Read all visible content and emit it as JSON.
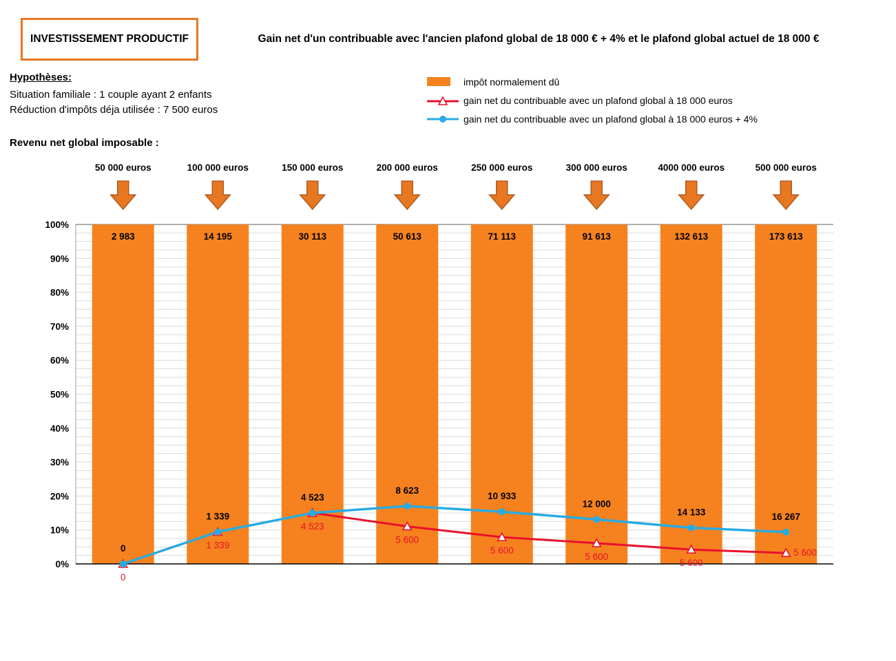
{
  "header": {
    "box_label": "INVESTISSEMENT PRODUCTIF",
    "title": "Gain net d'un contribuable avec l'ancien plafond global de 18 000 € + 4% et le plafond global actuel de 18 000 €"
  },
  "hypotheses": {
    "heading": "Hypothèses:",
    "line1": "Situation familiale  : 1 couple ayant 2 enfants",
    "line2": "Réduction d'impôts  déja utilisée :  7 500 euros"
  },
  "legend": [
    {
      "label": "impôt normalement dû",
      "color": "#F5821F",
      "marker": "bar-swatch"
    },
    {
      "label": "gain net du contribuable avec un plafond global à 18 000 euros",
      "color": "#E8112D",
      "marker": "line-triangle"
    },
    {
      "label": "gain net du contribuable avec un plafond global à 18 000 euros + 4%",
      "color": "#29ABE2",
      "marker": "line-circle"
    }
  ],
  "revenu_label": "Revenu net global imposable  :",
  "chart_data": {
    "type": "bar",
    "categories": [
      "50 000 euros",
      "100 000 euros",
      "150 000 euros",
      "200 000 euros",
      "250 000 euros",
      "300 000 euros",
      "4000 000 euros",
      "500 000 euros"
    ],
    "bar_series": {
      "name": "impôt normalement dû",
      "color": "#F5821F",
      "values": [
        2983,
        14195,
        30113,
        50613,
        71113,
        91613,
        132613,
        173613
      ],
      "value_labels": [
        "2 983",
        "14 195",
        "30 113",
        "50 613",
        "71 113",
        "91 613",
        "132 613",
        "173 613"
      ],
      "plotted_as_percent": 100
    },
    "line_series": [
      {
        "name": "gain net du contribuable avec un plafond global à 18 000 euros",
        "color": "#E8112D",
        "marker": "triangle",
        "values": [
          0,
          1339,
          4523,
          5600,
          5600,
          5600,
          5600,
          5600
        ],
        "value_labels": [
          "0",
          "1 339",
          "4 523",
          "5 600",
          "5 600",
          "5 600",
          "5 600",
          "5 600"
        ]
      },
      {
        "name": "gain net du contribuable avec un plafond global à 18 000 euros + 4%",
        "color": "#29ABE2",
        "marker": "circle",
        "values": [
          0,
          1339,
          4523,
          8623,
          10933,
          12000,
          14133,
          16267
        ],
        "value_labels": [
          "0",
          "1 339",
          "4 523",
          "8 623",
          "10 933",
          "12 000",
          "14 133",
          "16 267"
        ]
      }
    ],
    "y_axis": {
      "ticks": [
        "0%",
        "10%",
        "20%",
        "30%",
        "40%",
        "50%",
        "60%",
        "70%",
        "80%",
        "90%",
        "100%"
      ],
      "min": 0,
      "max": 100
    }
  }
}
